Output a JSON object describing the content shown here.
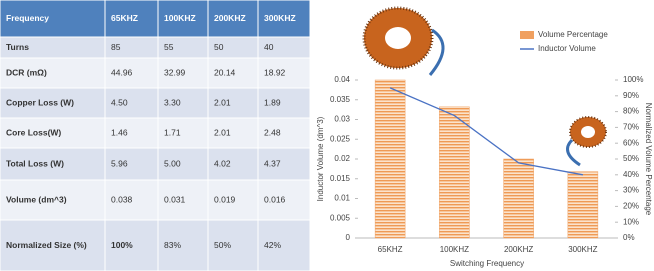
{
  "table": {
    "header": [
      "Frequency",
      "65KHZ",
      "100KHZ",
      "200KHZ",
      "300KHZ"
    ],
    "rows": [
      [
        "Turns",
        "85",
        "55",
        "50",
        "40"
      ],
      [
        "DCR (mΩ)",
        "44.96",
        "32.99",
        "20.14",
        "18.92"
      ],
      [
        "Copper Loss (W)",
        "4.50",
        "3.30",
        "2.01",
        "1.89"
      ],
      [
        "Core Loss(W)",
        "1.46",
        "1.71",
        "2.01",
        "2.48"
      ],
      [
        "Total Loss (W)",
        "5.96",
        "5.00",
        "4.02",
        "4.37"
      ],
      [
        "Volume (dm^3)",
        "0.038",
        "0.031",
        "0.019",
        "0.016"
      ],
      [
        "Normalized Size (%)",
        "100%",
        "83%",
        "50%",
        "42%"
      ]
    ]
  },
  "chart_data": {
    "type": "bar",
    "xlabel": "Switching Frequency",
    "ylabel": "Inductor Volume (dm^3)",
    "y2label": "Normalized Volume Percentage",
    "categories": [
      "65KHZ",
      "100KHZ",
      "200KHZ",
      "300KHZ"
    ],
    "series": [
      {
        "name": "Volume Percentage",
        "type": "bar",
        "color": "#f0a060",
        "axis": "y2",
        "values": [
          100,
          83,
          50,
          42
        ]
      },
      {
        "name": "Inductor Volume",
        "type": "line",
        "color": "#4a72c4",
        "values": [
          0.038,
          0.031,
          0.019,
          0.016
        ]
      }
    ],
    "ylim": [
      0,
      0.04
    ],
    "yticks": [
      0,
      0.005,
      0.01,
      0.015,
      0.02,
      0.025,
      0.03,
      0.035,
      0.04
    ],
    "y2lim": [
      0,
      100
    ],
    "y2ticks": [
      {
        "value": 0,
        "label": "0%"
      },
      {
        "value": 10,
        "label": "10%"
      },
      {
        "value": 20,
        "label": "20%"
      },
      {
        "value": 30,
        "label": "30%"
      },
      {
        "value": 40,
        "label": "40%"
      },
      {
        "value": 50,
        "label": "50%"
      },
      {
        "value": 60,
        "label": "60%"
      },
      {
        "value": 70,
        "label": "70%"
      },
      {
        "value": 80,
        "label": "80%"
      },
      {
        "value": 90,
        "label": "90%"
      },
      {
        "value": 100,
        "label": "100%"
      }
    ],
    "legend": "top-right"
  }
}
